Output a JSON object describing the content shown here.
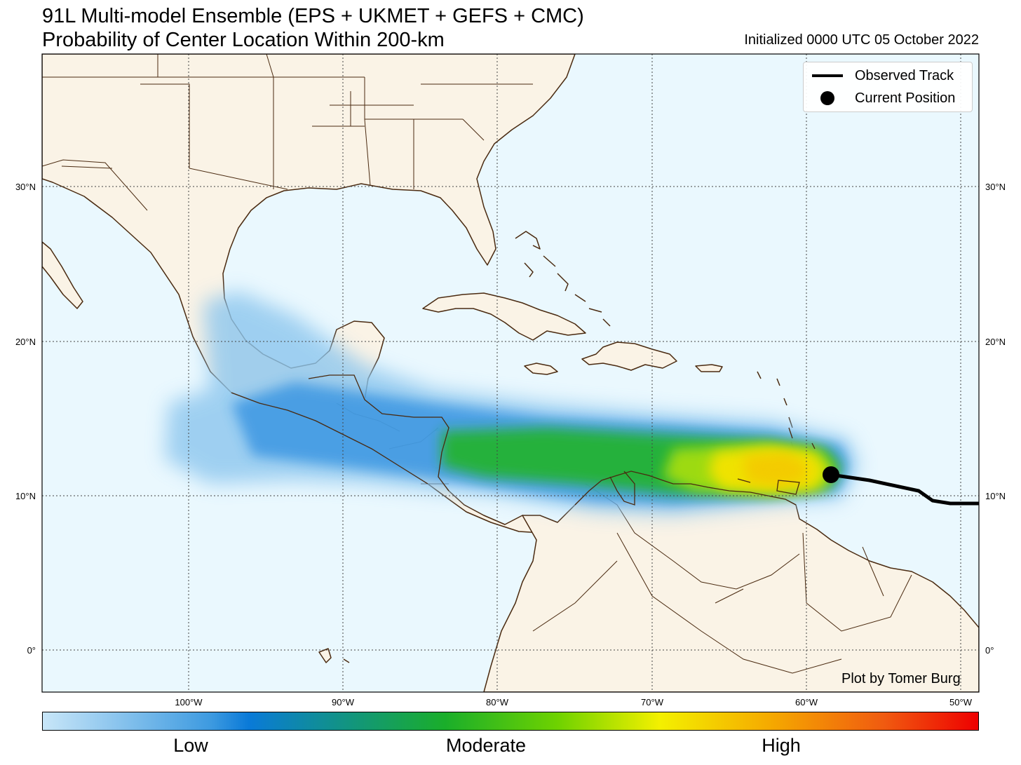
{
  "header": {
    "title_line1": "91L Multi-model Ensemble (EPS + UKMET + GEFS + CMC)",
    "title_line2": "Probability of Center Location Within 200-km",
    "initialized": "Initialized 0000 UTC 05 October 2022"
  },
  "map": {
    "lat_labels": [
      "30°N",
      "20°N",
      "10°N",
      "0°"
    ],
    "lon_labels": [
      "100°W",
      "90°W",
      "80°W",
      "70°W",
      "60°W",
      "50°W"
    ],
    "colors": {
      "ocean": "#eaf8fe",
      "land": "#faf3e6",
      "coast": "#4a2a10",
      "track": "#000000"
    }
  },
  "legend": {
    "observed_track": "Observed Track",
    "current_position": "Current Position"
  },
  "credit": "Plot by Tomer Burg",
  "colorbar": {
    "low": "Low",
    "moderate": "Moderate",
    "high": "High"
  }
}
